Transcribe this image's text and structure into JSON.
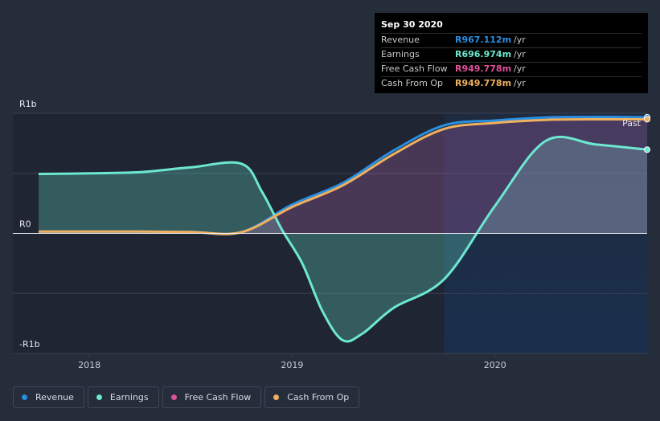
{
  "tooltip": {
    "date": "Sep 30 2020",
    "rows": [
      {
        "label": "Revenue",
        "value": "R967.112m",
        "unit": "/yr",
        "color": "#2a8fe0"
      },
      {
        "label": "Earnings",
        "value": "R696.974m",
        "unit": "/yr",
        "color": "#6ce8d0"
      },
      {
        "label": "Free Cash Flow",
        "value": "R949.778m",
        "unit": "/yr",
        "color": "#e0509a"
      },
      {
        "label": "Cash From Op",
        "value": "R949.778m",
        "unit": "/yr",
        "color": "#f0b060"
      }
    ]
  },
  "legend": [
    {
      "label": "Revenue",
      "color": "#2a8fe0"
    },
    {
      "label": "Earnings",
      "color": "#6ce8d0"
    },
    {
      "label": "Free Cash Flow",
      "color": "#e0509a"
    },
    {
      "label": "Cash From Op",
      "color": "#f0b060"
    }
  ],
  "past_label": "Past",
  "chart_data": {
    "type": "area",
    "y_unit": "R millions",
    "ylim": [
      -1000,
      1000
    ],
    "y_ticks": [
      {
        "value": 1000,
        "label": "R1b"
      },
      {
        "value": 0,
        "label": "R0"
      },
      {
        "value": -1000,
        "label": "-R1b"
      }
    ],
    "xlim": [
      2017.75,
      2020.75
    ],
    "x_ticks": [
      {
        "value": 2018,
        "label": "2018"
      },
      {
        "value": 2019,
        "label": "2019"
      },
      {
        "value": 2020,
        "label": "2020"
      }
    ],
    "past_start": 2019.75,
    "grid": true,
    "series": [
      {
        "name": "Revenue",
        "color": "#2a8fe0",
        "points": [
          [
            2017.75,
            15
          ],
          [
            2018.0,
            15
          ],
          [
            2018.25,
            15
          ],
          [
            2018.5,
            12
          ],
          [
            2018.75,
            10
          ],
          [
            2019.0,
            240
          ],
          [
            2019.25,
            420
          ],
          [
            2019.5,
            690
          ],
          [
            2019.75,
            900
          ],
          [
            2020.0,
            940
          ],
          [
            2020.25,
            965
          ],
          [
            2020.5,
            970
          ],
          [
            2020.75,
            967
          ]
        ]
      },
      {
        "name": "Earnings",
        "color": "#6ce8d0",
        "points": [
          [
            2017.75,
            495
          ],
          [
            2018.0,
            500
          ],
          [
            2018.25,
            510
          ],
          [
            2018.5,
            550
          ],
          [
            2018.75,
            580
          ],
          [
            2018.85,
            350
          ],
          [
            2018.95,
            30
          ],
          [
            2019.05,
            -250
          ],
          [
            2019.15,
            -650
          ],
          [
            2019.25,
            -890
          ],
          [
            2019.35,
            -830
          ],
          [
            2019.5,
            -620
          ],
          [
            2019.75,
            -380
          ],
          [
            2020.0,
            230
          ],
          [
            2020.25,
            770
          ],
          [
            2020.5,
            740
          ],
          [
            2020.75,
            697
          ]
        ]
      },
      {
        "name": "Cash From Op",
        "color": "#f0b060",
        "points": [
          [
            2017.75,
            15
          ],
          [
            2018.0,
            15
          ],
          [
            2018.25,
            15
          ],
          [
            2018.5,
            12
          ],
          [
            2018.75,
            10
          ],
          [
            2019.0,
            220
          ],
          [
            2019.25,
            400
          ],
          [
            2019.5,
            660
          ],
          [
            2019.75,
            870
          ],
          [
            2020.0,
            920
          ],
          [
            2020.25,
            945
          ],
          [
            2020.5,
            950
          ],
          [
            2020.75,
            950
          ]
        ]
      },
      {
        "name": "Free Cash Flow",
        "color": "#e0509a",
        "points": [
          [
            2017.75,
            15
          ],
          [
            2018.0,
            15
          ],
          [
            2018.25,
            15
          ],
          [
            2018.5,
            12
          ],
          [
            2018.75,
            10
          ],
          [
            2019.0,
            220
          ],
          [
            2019.25,
            400
          ],
          [
            2019.5,
            660
          ],
          [
            2019.75,
            870
          ],
          [
            2020.0,
            920
          ],
          [
            2020.25,
            945
          ],
          [
            2020.5,
            950
          ],
          [
            2020.75,
            950
          ]
        ]
      }
    ]
  }
}
